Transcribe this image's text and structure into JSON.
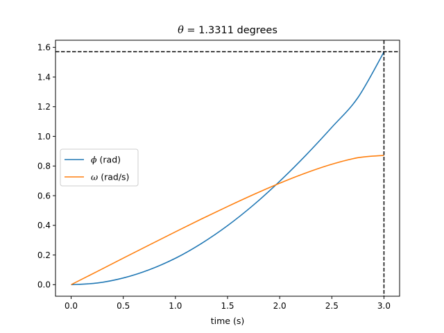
{
  "chart_data": {
    "type": "line",
    "title": {
      "symbol": "θ",
      "text": " = 1.3311 degrees"
    },
    "xlabel": "time (s)",
    "ylabel": "",
    "xlim": [
      -0.15,
      3.15
    ],
    "ylim": [
      -0.078,
      1.648
    ],
    "xticks": [
      0.0,
      0.5,
      1.0,
      1.5,
      2.0,
      2.5,
      3.0
    ],
    "xtick_labels": [
      "0.0",
      "0.5",
      "1.0",
      "1.5",
      "2.0",
      "2.5",
      "3.0"
    ],
    "yticks": [
      0.0,
      0.2,
      0.4,
      0.6,
      0.8,
      1.0,
      1.2,
      1.4,
      1.6
    ],
    "ytick_labels": [
      "0.0",
      "0.2",
      "0.4",
      "0.6",
      "0.8",
      "1.0",
      "1.2",
      "1.4",
      "1.6"
    ],
    "grid": false,
    "legend_position": "center-left",
    "series": [
      {
        "name": "(rad)",
        "symbol": "ϕ",
        "color": "#1f77b4",
        "x": [
          0.0,
          0.25,
          0.5,
          0.75,
          1.0,
          1.25,
          1.5,
          1.75,
          2.0,
          2.25,
          2.5,
          2.75,
          3.0
        ],
        "values": [
          0.0,
          0.011,
          0.045,
          0.101,
          0.178,
          0.278,
          0.398,
          0.538,
          0.697,
          0.872,
          1.061,
          1.261,
          1.569
        ]
      },
      {
        "name": "(rad/s)",
        "symbol": "ω",
        "color": "#ff7f0e",
        "x": [
          0.0,
          0.25,
          0.5,
          0.75,
          1.0,
          1.25,
          1.5,
          1.75,
          2.0,
          2.25,
          2.5,
          2.75,
          3.0
        ],
        "values": [
          0.0,
          0.089,
          0.179,
          0.268,
          0.356,
          0.443,
          0.527,
          0.608,
          0.684,
          0.753,
          0.812,
          0.856,
          0.872
        ]
      }
    ],
    "reference_lines": [
      {
        "orientation": "horizontal",
        "value": 1.5708,
        "style": "dashed",
        "color": "#000000"
      },
      {
        "orientation": "vertical",
        "value": 3.0,
        "style": "dashed",
        "color": "#000000"
      }
    ]
  }
}
